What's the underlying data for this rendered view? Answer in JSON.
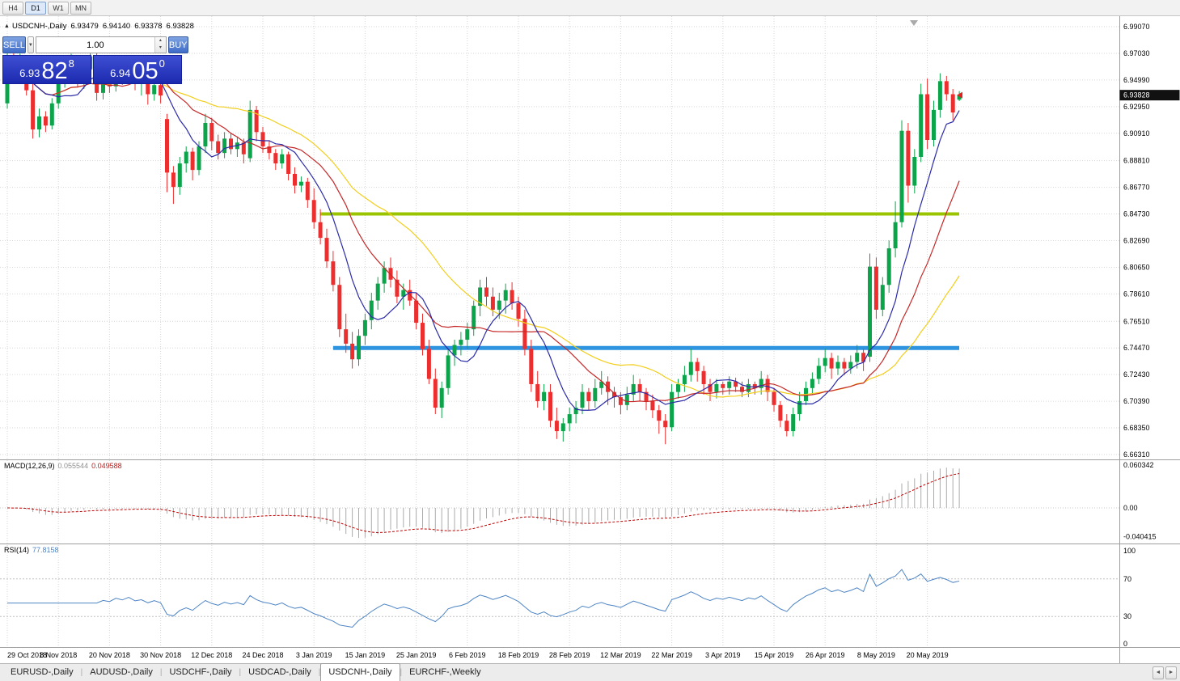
{
  "toolbar": {
    "timeframes": [
      {
        "label": "H4",
        "active": false
      },
      {
        "label": "D1",
        "active": true
      },
      {
        "label": "W1",
        "active": false
      },
      {
        "label": "MN",
        "active": false
      }
    ]
  },
  "chart_header": {
    "collapse_icon": "▲",
    "symbol": "USDCNH-,Daily",
    "open": "6.93479",
    "high": "6.94140",
    "low": "6.93378",
    "close": "6.93828"
  },
  "trade_panel": {
    "sell_label": "SELL",
    "buy_label": "BUY",
    "volume": "1.00",
    "dropdown_icon": "▼",
    "spin_up_icon": "▴",
    "spin_down_icon": "▾",
    "sell_price_main": "6.93",
    "sell_price_pips": "82",
    "sell_price_point": "8",
    "buy_price_main": "6.94",
    "buy_price_pips": "05",
    "buy_price_point": "0"
  },
  "price_axis": [
    "6.99070",
    "6.97030",
    "6.94990",
    "6.92950",
    "6.90910",
    "6.88810",
    "6.86770",
    "6.84730",
    "6.82690",
    "6.80650",
    "6.78610",
    "6.76510",
    "6.74470",
    "6.72430",
    "6.70390",
    "6.68350",
    "6.66310"
  ],
  "date_axis": [
    "29 Oct 2018",
    "8 Nov 2018",
    "20 Nov 2018",
    "30 Nov 2018",
    "12 Dec 2018",
    "24 Dec 2018",
    "3 Jan 2019",
    "15 Jan 2019",
    "25 Jan 2019",
    "6 Feb 2019",
    "18 Feb 2019",
    "28 Feb 2019",
    "12 Mar 2019",
    "22 Mar 2019",
    "3 Apr 2019",
    "15 Apr 2019",
    "26 Apr 2019",
    "8 May 2019",
    "20 May 2019"
  ],
  "current_price_badge": "6.93828",
  "macd_panel": {
    "name": "MACD(12,26,9)",
    "value": "0.055544",
    "signal": "0.049588",
    "axis": [
      "0.060342",
      "0.00",
      "-0.040415"
    ]
  },
  "rsi_panel": {
    "name": "RSI(14)",
    "value": "77.8158",
    "axis": [
      "100",
      "70",
      "30",
      "0"
    ]
  },
  "tabs": [
    {
      "label": "EURUSD-,Daily",
      "active": false
    },
    {
      "label": "AUDUSD-,Daily",
      "active": false
    },
    {
      "label": "USDCHF-,Daily",
      "active": false
    },
    {
      "label": "USDCAD-,Daily",
      "active": false
    },
    {
      "label": "USDCNH-,Daily",
      "active": true
    },
    {
      "label": "EURCHF-,Weekly",
      "active": false
    }
  ],
  "tab_scroll": {
    "left": "◄",
    "right": "►"
  },
  "chart_data": {
    "type": "candlestick",
    "symbol": "USDCNH-",
    "timeframe": "Daily",
    "price_range": {
      "top": 6.9907,
      "bottom": 6.6631
    },
    "label_every": 8,
    "last_candle": {
      "open": 6.93479,
      "high": 6.9414,
      "low": 6.93378,
      "close": 6.93828
    },
    "support_resistance": [
      {
        "price": 6.8473,
        "color": "#9bc400",
        "width": 4,
        "start_idx": 49
      },
      {
        "price": 6.7447,
        "color": "#2f94e0",
        "width": 5,
        "start_idx": 51
      }
    ],
    "indicators": {
      "macd": {
        "params": [
          12,
          26,
          9
        ],
        "value": 0.055544,
        "signal": 0.049588,
        "scale_max": 0.060342,
        "scale_min": -0.040415
      },
      "rsi": {
        "period": 14,
        "value": 77.8158,
        "levels": [
          70,
          30
        ]
      }
    },
    "ma_periods": {
      "fast": 8,
      "mid": 16,
      "slow": 30
    },
    "colors": {
      "bull": "#0ca44a",
      "bear": "#ed2e2e",
      "ma_fast": "#2b2ba8",
      "ma_mid": "#c62828",
      "ma_slow": "#f2ce1b",
      "macd_hist": "#ababab",
      "macd_signal": "#c00000",
      "rsi": "#4d84c4",
      "grid": "#d6d6d6",
      "badge_bg": "#111111"
    },
    "candles": [
      [
        6.932,
        6.976,
        6.928,
        6.964
      ],
      [
        6.964,
        6.972,
        6.948,
        6.953
      ],
      [
        6.953,
        6.97,
        6.949,
        6.967
      ],
      [
        6.967,
        6.969,
        6.938,
        6.942
      ],
      [
        6.942,
        6.948,
        6.905,
        6.912
      ],
      [
        6.912,
        6.928,
        6.906,
        6.922
      ],
      [
        6.922,
        6.926,
        6.91,
        6.915
      ],
      [
        6.915,
        6.936,
        6.912,
        6.932
      ],
      [
        6.932,
        6.958,
        6.928,
        6.953
      ],
      [
        6.953,
        6.964,
        6.944,
        6.96
      ],
      [
        6.96,
        6.97,
        6.952,
        6.966
      ],
      [
        6.966,
        6.968,
        6.944,
        6.949
      ],
      [
        6.949,
        6.962,
        6.943,
        6.958
      ],
      [
        6.958,
        6.975,
        6.952,
        6.968
      ],
      [
        6.968,
        6.972,
        6.934,
        6.94
      ],
      [
        6.94,
        6.954,
        6.935,
        6.95
      ],
      [
        6.95,
        6.956,
        6.94,
        6.945
      ],
      [
        6.945,
        6.962,
        6.941,
        6.958
      ],
      [
        6.958,
        6.961,
        6.946,
        6.951
      ],
      [
        6.951,
        6.966,
        6.947,
        6.961
      ],
      [
        6.961,
        6.964,
        6.942,
        6.947
      ],
      [
        6.947,
        6.955,
        6.938,
        6.951
      ],
      [
        6.951,
        6.953,
        6.931,
        6.939
      ],
      [
        6.939,
        6.95,
        6.934,
        6.946
      ],
      [
        6.946,
        6.949,
        6.932,
        6.938
      ],
      [
        6.92,
        6.924,
        6.864,
        6.879
      ],
      [
        6.879,
        6.884,
        6.855,
        6.868
      ],
      [
        6.868,
        6.891,
        6.862,
        6.886
      ],
      [
        6.886,
        6.899,
        6.879,
        6.895
      ],
      [
        6.895,
        6.898,
        6.873,
        6.881
      ],
      [
        6.881,
        6.903,
        6.877,
        6.899
      ],
      [
        6.899,
        6.924,
        6.894,
        6.917
      ],
      [
        6.917,
        6.921,
        6.896,
        6.903
      ],
      [
        6.903,
        6.908,
        6.889,
        6.894
      ],
      [
        6.894,
        6.91,
        6.89,
        6.905
      ],
      [
        6.905,
        6.909,
        6.893,
        6.897
      ],
      [
        6.897,
        6.906,
        6.891,
        6.902
      ],
      [
        6.902,
        6.905,
        6.886,
        6.893
      ],
      [
        6.89,
        6.934,
        6.887,
        6.927
      ],
      [
        6.927,
        6.93,
        6.903,
        6.91
      ],
      [
        6.91,
        6.914,
        6.894,
        6.899
      ],
      [
        6.899,
        6.903,
        6.889,
        6.894
      ],
      [
        6.894,
        6.897,
        6.881,
        6.886
      ],
      [
        6.886,
        6.897,
        6.882,
        6.893
      ],
      [
        6.893,
        6.895,
        6.873,
        6.878
      ],
      [
        6.878,
        6.883,
        6.863,
        6.869
      ],
      [
        6.869,
        6.876,
        6.864,
        6.872
      ],
      [
        6.872,
        6.875,
        6.852,
        6.858
      ],
      [
        6.858,
        6.867,
        6.836,
        6.841
      ],
      [
        6.841,
        6.851,
        6.824,
        6.829
      ],
      [
        6.829,
        6.836,
        6.806,
        6.811
      ],
      [
        6.811,
        6.819,
        6.788,
        6.793
      ],
      [
        6.793,
        6.799,
        6.753,
        6.759
      ],
      [
        6.759,
        6.771,
        6.741,
        6.748
      ],
      [
        6.748,
        6.757,
        6.729,
        6.736
      ],
      [
        6.736,
        6.759,
        6.731,
        6.754
      ],
      [
        6.754,
        6.771,
        6.747,
        6.766
      ],
      [
        6.766,
        6.787,
        6.759,
        6.781
      ],
      [
        6.781,
        6.799,
        6.774,
        6.794
      ],
      [
        6.794,
        6.811,
        6.787,
        6.806
      ],
      [
        6.806,
        6.814,
        6.791,
        6.797
      ],
      [
        6.797,
        6.804,
        6.779,
        6.784
      ],
      [
        6.784,
        6.794,
        6.774,
        6.789
      ],
      [
        6.789,
        6.797,
        6.777,
        6.781
      ],
      [
        6.781,
        6.787,
        6.759,
        6.764
      ],
      [
        6.764,
        6.771,
        6.739,
        6.744
      ],
      [
        6.744,
        6.751,
        6.717,
        6.721
      ],
      [
        6.721,
        6.729,
        6.694,
        6.699
      ],
      [
        6.699,
        6.719,
        6.691,
        6.714
      ],
      [
        6.714,
        6.744,
        6.709,
        6.739
      ],
      [
        6.739,
        6.751,
        6.731,
        6.747
      ],
      [
        6.747,
        6.757,
        6.739,
        6.751
      ],
      [
        6.751,
        6.764,
        6.744,
        6.759
      ],
      [
        6.759,
        6.781,
        6.754,
        6.777
      ],
      [
        6.777,
        6.797,
        6.769,
        6.791
      ],
      [
        6.791,
        6.799,
        6.777,
        6.784
      ],
      [
        6.784,
        6.791,
        6.769,
        6.774
      ],
      [
        6.774,
        6.787,
        6.767,
        6.781
      ],
      [
        6.781,
        6.794,
        6.771,
        6.789
      ],
      [
        6.789,
        6.795,
        6.774,
        6.779
      ],
      [
        6.779,
        6.784,
        6.761,
        6.767
      ],
      [
        6.767,
        6.774,
        6.739,
        6.744
      ],
      [
        6.744,
        6.751,
        6.711,
        6.717
      ],
      [
        6.717,
        6.727,
        6.699,
        6.704
      ],
      [
        6.704,
        6.717,
        6.697,
        6.711
      ],
      [
        6.711,
        6.717,
        6.684,
        6.689
      ],
      [
        6.689,
        6.699,
        6.675,
        6.681
      ],
      [
        6.681,
        6.691,
        6.673,
        6.687
      ],
      [
        6.687,
        6.699,
        6.681,
        6.694
      ],
      [
        6.694,
        6.704,
        6.687,
        6.699
      ],
      [
        6.699,
        6.717,
        6.694,
        6.711
      ],
      [
        6.711,
        6.714,
        6.697,
        6.704
      ],
      [
        6.704,
        6.721,
        6.699,
        6.714
      ],
      [
        6.714,
        6.727,
        6.709,
        6.719
      ],
      [
        6.719,
        6.723,
        6.701,
        6.711
      ],
      [
        6.711,
        6.715,
        6.699,
        6.707
      ],
      [
        6.707,
        6.711,
        6.694,
        6.701
      ],
      [
        6.701,
        6.715,
        6.697,
        6.709
      ],
      [
        6.709,
        6.724,
        6.704,
        6.717
      ],
      [
        6.717,
        6.721,
        6.704,
        6.711
      ],
      [
        6.711,
        6.714,
        6.697,
        6.704
      ],
      [
        6.704,
        6.709,
        6.691,
        6.697
      ],
      [
        6.697,
        6.701,
        6.679,
        6.689
      ],
      [
        6.689,
        6.694,
        6.671,
        6.684
      ],
      [
        6.684,
        6.717,
        6.681,
        6.711
      ],
      [
        6.711,
        6.721,
        6.706,
        6.717
      ],
      [
        6.717,
        6.731,
        6.711,
        6.724
      ],
      [
        6.724,
        6.744,
        6.719,
        6.734
      ],
      [
        6.734,
        6.737,
        6.719,
        6.727
      ],
      [
        6.727,
        6.731,
        6.709,
        6.717
      ],
      [
        6.717,
        6.721,
        6.704,
        6.711
      ],
      [
        6.711,
        6.721,
        6.706,
        6.717
      ],
      [
        6.717,
        6.719,
        6.709,
        6.714
      ],
      [
        6.714,
        6.723,
        6.709,
        6.719
      ],
      [
        6.719,
        6.722,
        6.711,
        6.715
      ],
      [
        6.715,
        6.719,
        6.707,
        6.711
      ],
      [
        6.711,
        6.721,
        6.707,
        6.717
      ],
      [
        6.717,
        6.719,
        6.709,
        6.714
      ],
      [
        6.714,
        6.727,
        6.709,
        6.721
      ],
      [
        6.721,
        6.724,
        6.704,
        6.711
      ],
      [
        6.711,
        6.714,
        6.696,
        6.701
      ],
      [
        6.701,
        6.704,
        6.684,
        6.689
      ],
      [
        6.689,
        6.694,
        6.677,
        6.681
      ],
      [
        6.681,
        6.699,
        6.677,
        6.694
      ],
      [
        6.694,
        6.711,
        6.689,
        6.704
      ],
      [
        6.704,
        6.719,
        6.701,
        6.714
      ],
      [
        6.714,
        6.726,
        6.709,
        6.721
      ],
      [
        6.721,
        6.737,
        6.717,
        6.731
      ],
      [
        6.731,
        6.744,
        6.726,
        6.737
      ],
      [
        6.737,
        6.741,
        6.721,
        6.729
      ],
      [
        6.729,
        6.739,
        6.724,
        6.734
      ],
      [
        6.734,
        6.737,
        6.724,
        6.729
      ],
      [
        6.729,
        6.739,
        6.725,
        6.734
      ],
      [
        6.734,
        6.747,
        6.729,
        6.741
      ],
      [
        6.741,
        6.744,
        6.727,
        6.734
      ],
      [
        6.738,
        6.817,
        6.734,
        6.807
      ],
      [
        6.807,
        6.814,
        6.767,
        6.774
      ],
      [
        6.774,
        6.799,
        6.769,
        6.793
      ],
      [
        6.793,
        6.827,
        6.787,
        6.821
      ],
      [
        6.821,
        6.857,
        6.814,
        6.841
      ],
      [
        6.841,
        6.919,
        6.837,
        6.911
      ],
      [
        6.911,
        6.917,
        6.856,
        6.869
      ],
      [
        6.869,
        6.897,
        6.863,
        6.891
      ],
      [
        6.891,
        6.947,
        6.887,
        6.939
      ],
      [
        6.939,
        6.951,
        6.897,
        6.904
      ],
      [
        6.904,
        6.934,
        6.899,
        6.927
      ],
      [
        6.927,
        6.955,
        6.921,
        6.949
      ],
      [
        6.949,
        6.953,
        6.934,
        6.939
      ],
      [
        6.939,
        6.943,
        6.919,
        6.925
      ],
      [
        6.93479,
        6.9414,
        6.93378,
        6.93828
      ]
    ]
  }
}
